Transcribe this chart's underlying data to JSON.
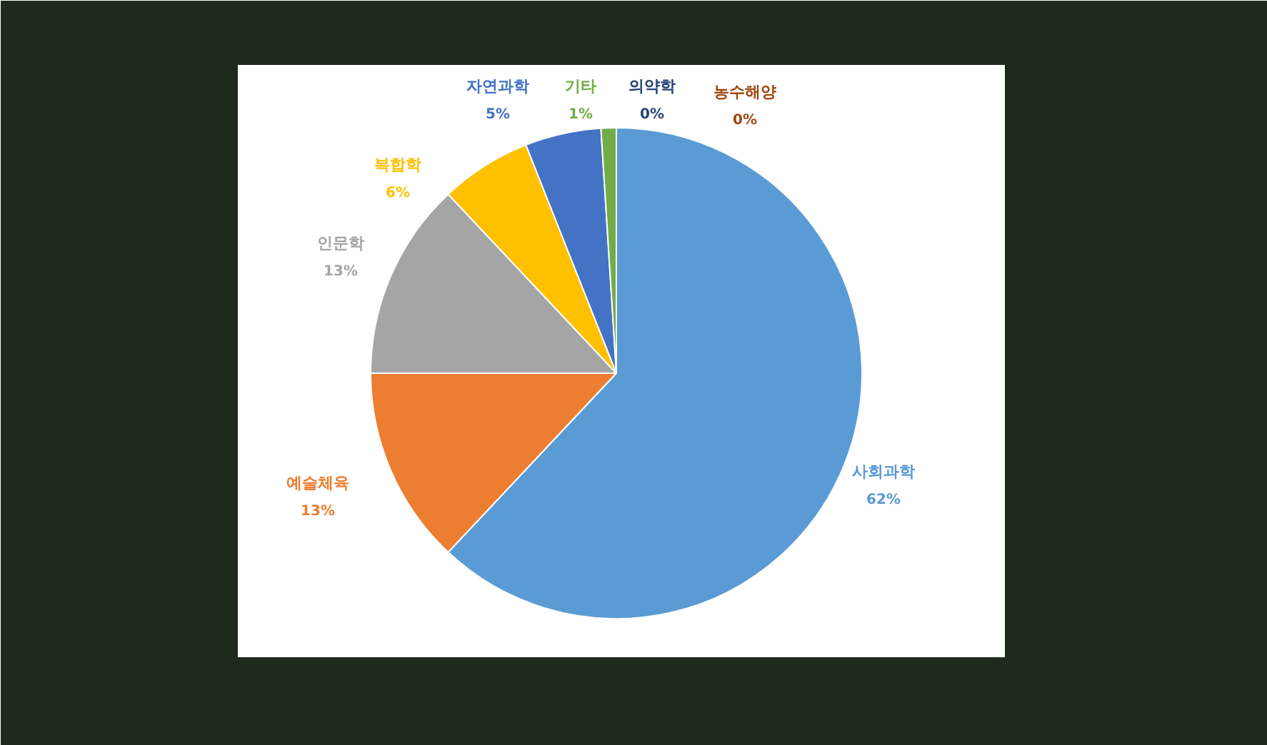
{
  "chart_data": {
    "type": "pie",
    "categories": [
      "사회과학",
      "예술체육",
      "인문학",
      "복합학",
      "자연과학",
      "기타",
      "의약학",
      "농수해양"
    ],
    "values": [
      62,
      13,
      13,
      6,
      5,
      1,
      0,
      0
    ],
    "colors": [
      "#5b9bd5",
      "#ed7d31",
      "#a5a5a5",
      "#ffc000",
      "#4472c4",
      "#70ad47",
      "#264478",
      "#9e480e"
    ],
    "value_labels": [
      "62%",
      "13%",
      "13%",
      "6%",
      "5%",
      "1%",
      "0%",
      "0%"
    ]
  }
}
